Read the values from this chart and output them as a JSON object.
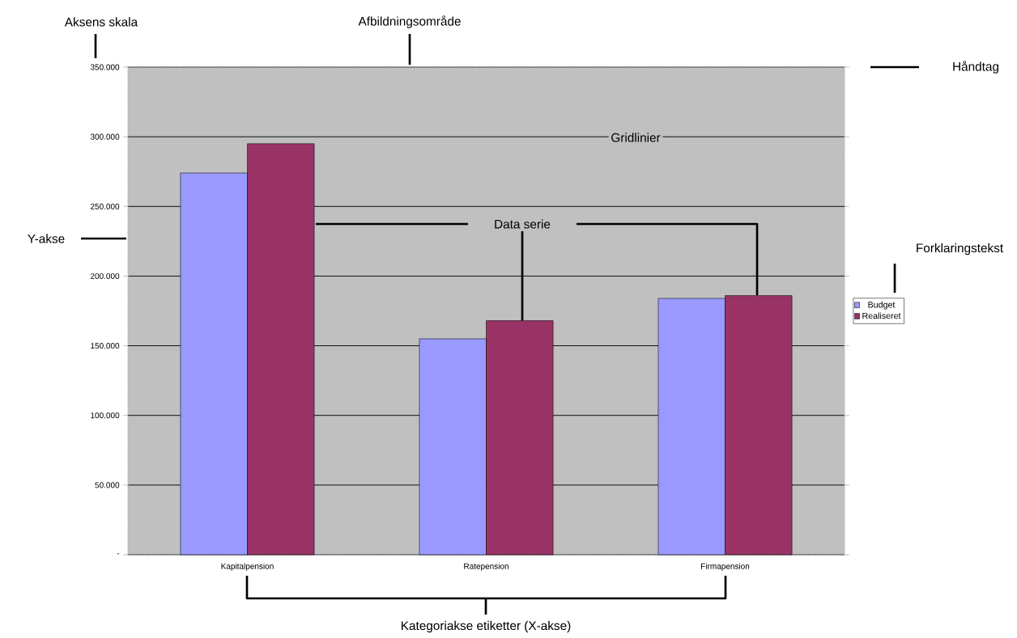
{
  "chart_data": {
    "type": "bar",
    "categories": [
      "Kapitalpension",
      "Ratepension",
      "Firmapension"
    ],
    "series": [
      {
        "name": "Budget",
        "color": "#9999ff",
        "values": [
          274000,
          155000,
          184000
        ]
      },
      {
        "name": "Realiseret",
        "color": "#993366",
        "values": [
          295000,
          168000,
          186000
        ]
      }
    ],
    "ylim": [
      0,
      350000
    ],
    "yticks": [
      {
        "value": 0,
        "label": "-"
      },
      {
        "value": 50000,
        "label": "50.000"
      },
      {
        "value": 100000,
        "label": "100.000"
      },
      {
        "value": 150000,
        "label": "150.000"
      },
      {
        "value": 200000,
        "label": "200.000"
      },
      {
        "value": 250000,
        "label": "250.000"
      },
      {
        "value": 300000,
        "label": "300.000"
      },
      {
        "value": 350000,
        "label": "350.000"
      }
    ],
    "grid": "y",
    "legend": "right",
    "annotations": [
      "Aksens skala",
      "Afbildningsområde",
      "Håndtag",
      "Gridlinier",
      "Y-akse",
      {
        "text": "Data serie",
        "y": 168000
      },
      "Forklaringstekst",
      "Kategoriakse etiketter (X-akse)"
    ]
  }
}
